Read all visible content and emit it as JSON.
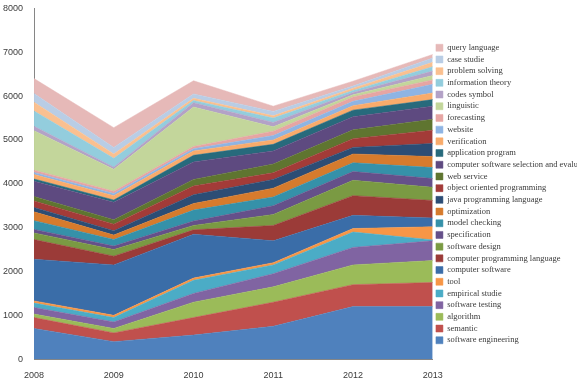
{
  "chart_data": {
    "type": "area",
    "categories": [
      "2008",
      "2009",
      "2010",
      "2011",
      "2012",
      "2013"
    ],
    "stacked": true,
    "legend": "right",
    "grid": false,
    "ylim": [
      0,
      8000
    ],
    "yticks": [
      0,
      1000,
      2000,
      3000,
      4000,
      5000,
      6000,
      7000,
      8000
    ],
    "series": [
      {
        "name": "software engineering",
        "color": "#4F81BD",
        "values": [
          700,
          400,
          550,
          750,
          1200,
          1200
        ]
      },
      {
        "name": "semantic",
        "color": "#C0504D",
        "values": [
          250,
          200,
          400,
          550,
          500,
          550
        ]
      },
      {
        "name": "algorithm",
        "color": "#9BBB59",
        "values": [
          80,
          100,
          350,
          350,
          450,
          500
        ]
      },
      {
        "name": "software testing",
        "color": "#8064A2",
        "values": [
          150,
          150,
          200,
          300,
          400,
          450
        ]
      },
      {
        "name": "empirical studie",
        "color": "#4BACC6",
        "values": [
          100,
          100,
          300,
          200,
          350,
          20
        ]
      },
      {
        "name": "tool",
        "color": "#F79646",
        "values": [
          50,
          50,
          50,
          50,
          80,
          300
        ]
      },
      {
        "name": "computer software",
        "color": "#3A6DA8",
        "values": [
          950,
          1150,
          1000,
          500,
          300,
          200
        ]
      },
      {
        "name": "computer programming language",
        "color": "#9B3B38",
        "values": [
          450,
          200,
          100,
          350,
          450,
          400
        ]
      },
      {
        "name": "software design",
        "color": "#7A9A43",
        "values": [
          150,
          150,
          100,
          250,
          350,
          300
        ]
      },
      {
        "name": "specification",
        "color": "#65508A",
        "values": [
          80,
          80,
          100,
          200,
          200,
          200
        ]
      },
      {
        "name": "model checking",
        "color": "#3591A9",
        "values": [
          200,
          150,
          250,
          200,
          200,
          250
        ]
      },
      {
        "name": "optimization",
        "color": "#D67B2D",
        "values": [
          200,
          100,
          150,
          200,
          200,
          250
        ]
      },
      {
        "name": "java programming language",
        "color": "#2C4D75",
        "values": [
          100,
          100,
          200,
          200,
          150,
          300
        ]
      },
      {
        "name": "object oriented programming",
        "color": "#A33B38",
        "values": [
          150,
          150,
          200,
          150,
          200,
          300
        ]
      },
      {
        "name": "web service",
        "color": "#5F7530",
        "values": [
          100,
          100,
          150,
          200,
          200,
          250
        ]
      },
      {
        "name": "computer software selection and evaluati",
        "color": "#5E4A80",
        "values": [
          350,
          400,
          400,
          300,
          300,
          300
        ]
      },
      {
        "name": "application program",
        "color": "#276A7C",
        "values": [
          50,
          50,
          150,
          150,
          150,
          150
        ]
      },
      {
        "name": "verification",
        "color": "#F9AB6B",
        "values": [
          100,
          100,
          100,
          100,
          100,
          150
        ]
      },
      {
        "name": "website",
        "color": "#8EB4E3",
        "values": [
          50,
          50,
          50,
          100,
          100,
          200
        ]
      },
      {
        "name": "forecasting",
        "color": "#E6A5A3",
        "values": [
          50,
          50,
          50,
          100,
          100,
          100
        ]
      },
      {
        "name": "linguistic",
        "color": "#C3D69B",
        "values": [
          900,
          500,
          900,
          100,
          50,
          100
        ]
      },
      {
        "name": "codes symbol",
        "color": "#B3A2C7",
        "values": [
          100,
          50,
          100,
          100,
          50,
          100
        ]
      },
      {
        "name": "information theory",
        "color": "#93CDDD",
        "values": [
          350,
          200,
          50,
          100,
          50,
          100
        ]
      },
      {
        "name": "problem solving",
        "color": "#FAC090",
        "values": [
          200,
          100,
          50,
          50,
          50,
          100
        ]
      },
      {
        "name": "case studie",
        "color": "#B9CDE5",
        "values": [
          200,
          150,
          100,
          100,
          50,
          100
        ]
      },
      {
        "name": "query language",
        "color": "#E6B9B8",
        "values": [
          340,
          450,
          300,
          120,
          110,
          80
        ]
      }
    ]
  }
}
